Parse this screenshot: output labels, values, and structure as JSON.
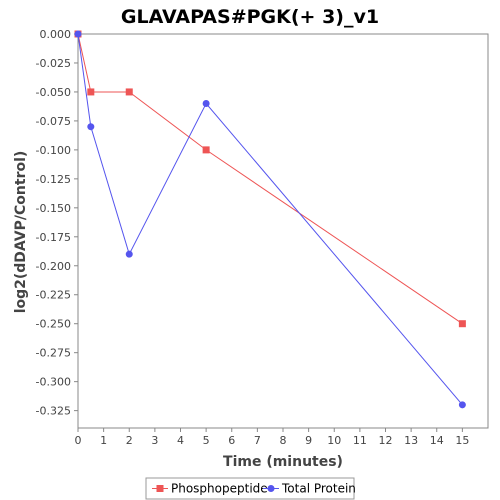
{
  "chart_data": {
    "type": "line",
    "title": "GLAVAPAS#PGK(+ 3)_v1",
    "xlabel": "Time (minutes)",
    "ylabel": "log2(dDAVP/Control)",
    "xlim": [
      0,
      16
    ],
    "ylim": [
      -0.34,
      0.0
    ],
    "xticks": [
      0,
      1,
      2,
      3,
      4,
      5,
      6,
      7,
      8,
      9,
      10,
      11,
      12,
      13,
      14,
      15
    ],
    "yticks": [
      0.0,
      -0.025,
      -0.05,
      -0.075,
      -0.1,
      -0.125,
      -0.15,
      -0.175,
      -0.2,
      -0.225,
      -0.25,
      -0.275,
      -0.3,
      -0.325
    ],
    "ytick_labels": [
      "0.000",
      "-0.025",
      "-0.050",
      "-0.075",
      "-0.100",
      "-0.125",
      "-0.150",
      "-0.175",
      "-0.200",
      "-0.225",
      "-0.250",
      "-0.275",
      "-0.300",
      "-0.325"
    ],
    "grid": false,
    "legend_position": "bottom",
    "series": [
      {
        "name": "Phosphopeptide",
        "color": "#ee5555",
        "marker": "square",
        "x": [
          0,
          0.5,
          2,
          5,
          15
        ],
        "y": [
          0.0,
          -0.05,
          -0.05,
          -0.1,
          -0.25
        ]
      },
      {
        "name": "Total Protein",
        "color": "#5555ee",
        "marker": "circle",
        "x": [
          0,
          0.5,
          2,
          5,
          15
        ],
        "y": [
          0.0,
          -0.08,
          -0.19,
          -0.06,
          -0.32
        ]
      }
    ]
  }
}
